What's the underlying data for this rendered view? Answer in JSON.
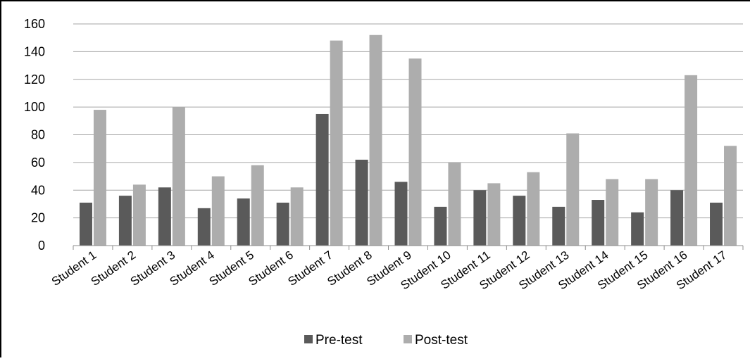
{
  "chart_data": {
    "type": "bar",
    "title": "",
    "xlabel": "",
    "ylabel": "",
    "ylim": [
      0,
      160
    ],
    "yticks": [
      0,
      20,
      40,
      60,
      80,
      100,
      120,
      140,
      160
    ],
    "grid": true,
    "legend_position": "bottom",
    "categories": [
      "Student 1",
      "Student 2",
      "Student 3",
      "Student 4",
      "Student 5",
      "Student 6",
      "Student 7",
      "Student 8",
      "Student 9",
      "Student 10",
      "Student 11",
      "Student 12",
      "Student 13",
      "Student 14",
      "Student 15",
      "Student 16",
      "Student 17"
    ],
    "series": [
      {
        "name": "Pre-test",
        "color": "#5a5a5a",
        "values": [
          31,
          36,
          42,
          27,
          34,
          31,
          95,
          62,
          46,
          28,
          40,
          36,
          28,
          33,
          24,
          40,
          31
        ]
      },
      {
        "name": "Post-test",
        "color": "#adadad",
        "values": [
          98,
          44,
          100,
          50,
          58,
          42,
          148,
          152,
          135,
          60,
          45,
          53,
          81,
          48,
          48,
          123,
          72
        ]
      }
    ]
  }
}
